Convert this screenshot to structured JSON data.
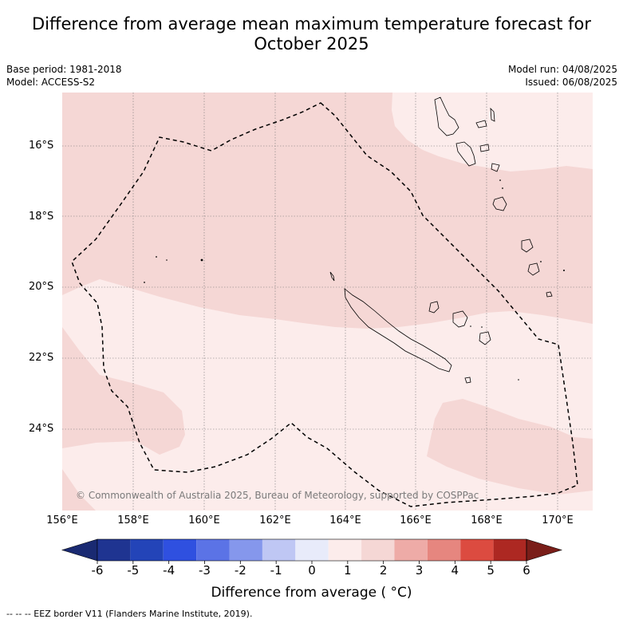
{
  "title_line1": "Difference from average mean maximum temperature forecast for",
  "title_line2": "October 2025",
  "base_period": "Base period: 1981-2018",
  "model": "Model: ACCESS-S2",
  "model_run": "Model run: 04/08/2025",
  "issued": "Issued: 06/08/2025",
  "lat_labels": [
    "16°S",
    "18°S",
    "20°S",
    "22°S",
    "24°S"
  ],
  "lon_labels": [
    "156°E",
    "158°E",
    "160°E",
    "162°E",
    "164°E",
    "166°E",
    "168°E",
    "170°E"
  ],
  "copyright": "© Commonwealth of Australia 2025, Bureau of Meteorology, supported by COSPPac",
  "colorbar": {
    "ticks": [
      "-6",
      "-5",
      "-4",
      "-3",
      "-2",
      "-1",
      "0",
      "1",
      "2",
      "3",
      "4",
      "5",
      "6"
    ],
    "colors": [
      "#1f3491",
      "#2344b8",
      "#2f50e0",
      "#5b73e6",
      "#8597ec",
      "#bfc7f4",
      "#e8ebfa",
      "#fceceb",
      "#f5d7d5",
      "#eeaba7",
      "#e6867f",
      "#dc4b40",
      "#ad2822"
    ],
    "low_extend_color": "#1a2a72",
    "high_extend_color": "#7a1e19",
    "label": "Difference from average ( °C)"
  },
  "legend_note": "--  --  -- EEZ border V11 (Flanders Marine Institute, 2019).",
  "map": {
    "background_color": "#f5d7d5",
    "light_color": "#fceceb",
    "coast_color": "#000000"
  }
}
